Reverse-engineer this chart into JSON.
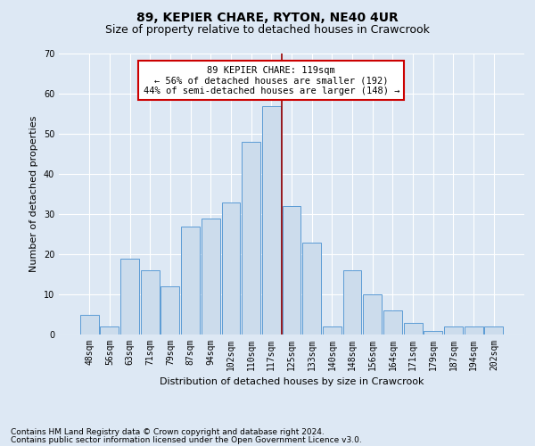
{
  "title": "89, KEPIER CHARE, RYTON, NE40 4UR",
  "subtitle": "Size of property relative to detached houses in Crawcrook",
  "xlabel": "Distribution of detached houses by size in Crawcrook",
  "ylabel": "Number of detached properties",
  "categories": [
    "48sqm",
    "56sqm",
    "63sqm",
    "71sqm",
    "79sqm",
    "87sqm",
    "94sqm",
    "102sqm",
    "110sqm",
    "117sqm",
    "125sqm",
    "133sqm",
    "140sqm",
    "148sqm",
    "156sqm",
    "164sqm",
    "171sqm",
    "179sqm",
    "187sqm",
    "194sqm",
    "202sqm"
  ],
  "values": [
    5,
    2,
    19,
    16,
    12,
    27,
    29,
    33,
    48,
    57,
    32,
    23,
    2,
    16,
    10,
    6,
    3,
    1,
    2,
    2,
    2
  ],
  "bar_color": "#ccdcec",
  "bar_edge_color": "#5b9bd5",
  "vline_index": 9,
  "vline_color": "#990000",
  "annotation_text": "89 KEPIER CHARE: 119sqm\n← 56% of detached houses are smaller (192)\n44% of semi-detached houses are larger (148) →",
  "annotation_box_facecolor": "#ffffff",
  "annotation_box_edgecolor": "#cc0000",
  "ylim": [
    0,
    70
  ],
  "yticks": [
    0,
    10,
    20,
    30,
    40,
    50,
    60,
    70
  ],
  "background_color": "#dde8f4",
  "grid_color": "#ffffff",
  "title_fontsize": 10,
  "subtitle_fontsize": 9,
  "xlabel_fontsize": 8,
  "ylabel_fontsize": 8,
  "tick_fontsize": 7,
  "annotation_fontsize": 7.5,
  "footer_fontsize": 6.5,
  "footer_line1": "Contains HM Land Registry data © Crown copyright and database right 2024.",
  "footer_line2": "Contains public sector information licensed under the Open Government Licence v3.0."
}
